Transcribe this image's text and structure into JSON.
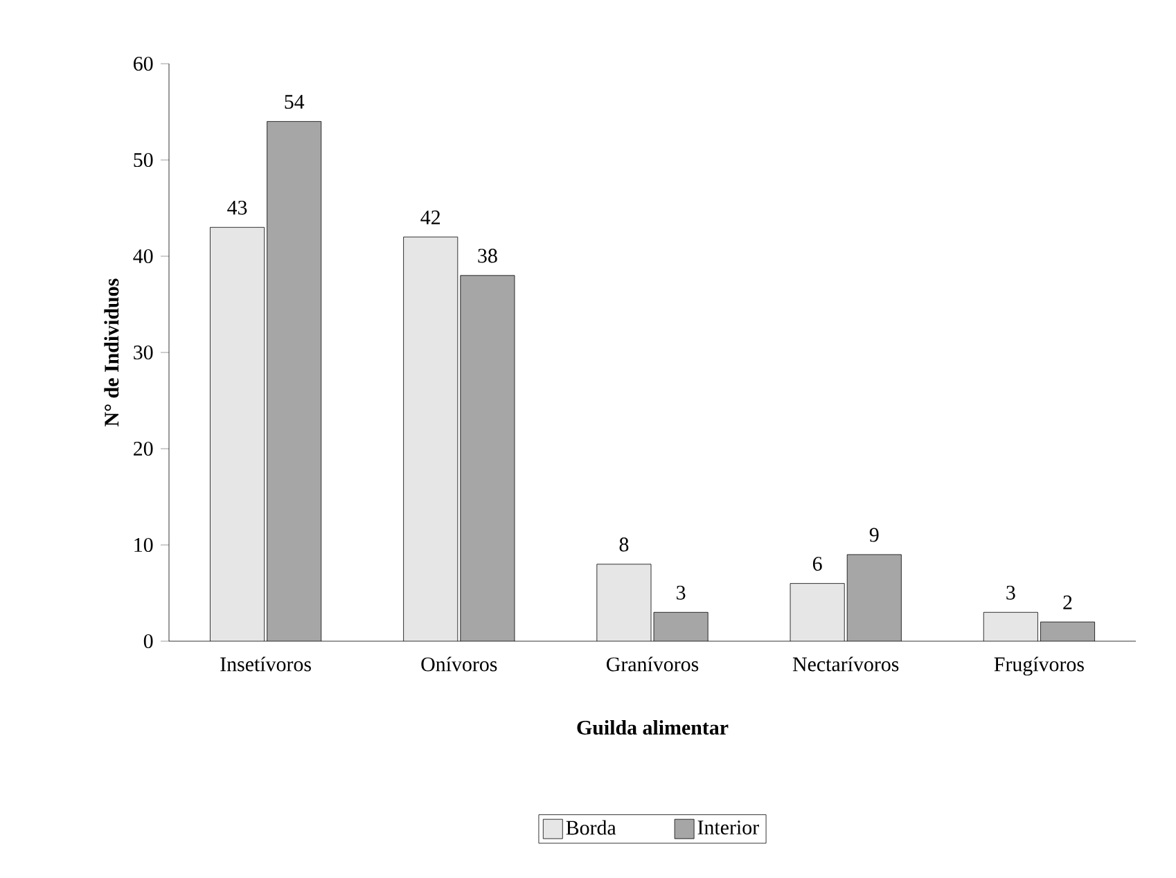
{
  "chart_data": {
    "type": "bar",
    "xlabel": "Guilda alimentar",
    "ylabel": "N° de Individuos",
    "categories": [
      "Insetívoros",
      "Onívoros",
      "Granívoros",
      "Nectarívoros",
      "Frugívoros"
    ],
    "series": [
      {
        "name": "Borda",
        "color": "#e6e6e6",
        "values": [
          43,
          42,
          8,
          6,
          3
        ]
      },
      {
        "name": "Interior",
        "color": "#a6a6a6",
        "values": [
          54,
          38,
          3,
          9,
          2
        ]
      }
    ],
    "ylim": [
      0,
      60
    ],
    "yticks": [
      0,
      10,
      20,
      30,
      40,
      50,
      60
    ],
    "data_labels": true,
    "grid": false,
    "legend": "bottom"
  }
}
